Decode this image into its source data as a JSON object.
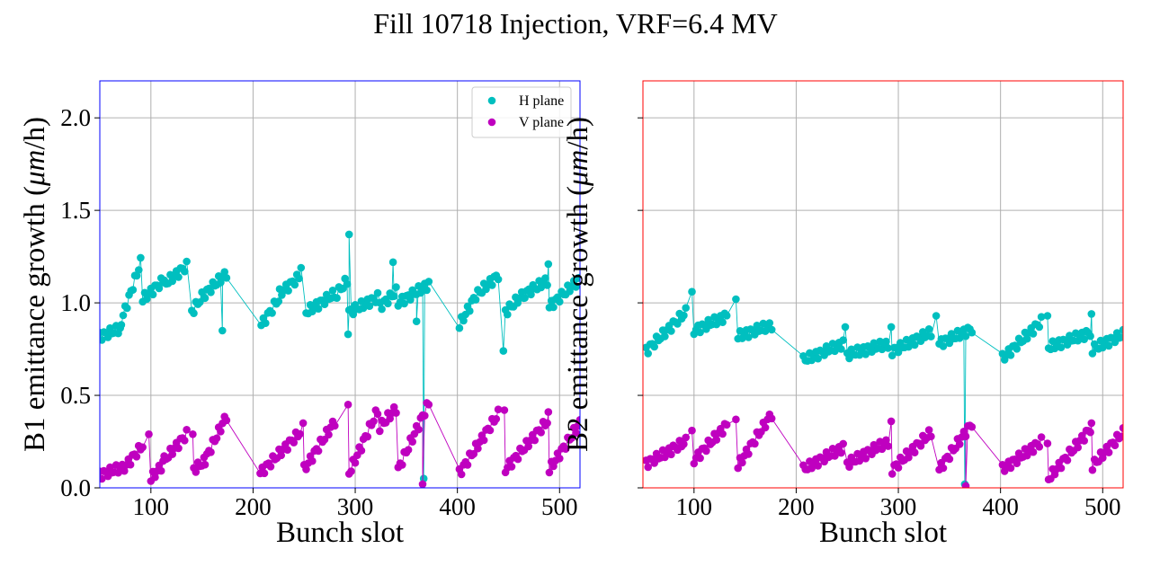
{
  "figure": {
    "title": "Fill 10718 Injection, VRF=6.4 MV"
  },
  "colors": {
    "h_plane": "#00bfbf",
    "v_plane": "#bf00bf",
    "b1_frame": "#0000ff",
    "b2_frame": "#ff0000",
    "grid": "#b0b0b0"
  },
  "chart_data": [
    {
      "type": "scatter",
      "title": "",
      "xlabel": "Bunch slot",
      "ylabel_prefix": "B1 emittance growth (",
      "ylabel_unit": "μm",
      "ylabel_suffix": "/h)",
      "xlim": [
        50,
        520
      ],
      "ylim": [
        0.0,
        2.2
      ],
      "xticks": [
        100,
        200,
        300,
        400,
        500
      ],
      "yticks": [
        0.0,
        0.5,
        1.0,
        1.5,
        2.0
      ],
      "ytick_labels": [
        "0.0",
        "0.5",
        "1.0",
        "1.5",
        "2.0"
      ],
      "grid": true,
      "legend": {
        "position": "top-right",
        "entries": [
          "H plane",
          "V plane"
        ]
      },
      "series": [
        {
          "name": "H plane",
          "groups": [
            {
              "x_start": 50,
              "x_end": 70,
              "y_start": 0.82,
              "y_end": 0.86,
              "n": 11
            },
            {
              "x_start": 71,
              "x_end": 90,
              "y_start": 0.9,
              "y_end": 1.22,
              "n": 11
            },
            {
              "x_start": 92,
              "x_end": 112,
              "y_start": 1.02,
              "y_end": 1.12,
              "n": 11
            },
            {
              "x_start": 113,
              "x_end": 135,
              "y_start": 1.1,
              "y_end": 1.2,
              "n": 12
            },
            {
              "x_start": 140,
              "x_end": 152,
              "y_start": 0.95,
              "y_end": 1.05,
              "n": 7
            },
            {
              "x_start": 153,
              "x_end": 174,
              "y_start": 1.05,
              "y_end": 1.16,
              "n": 12
            },
            {
              "x_start": 208,
              "x_end": 225,
              "y_start": 0.88,
              "y_end": 1.02,
              "n": 9
            },
            {
              "x_start": 226,
              "x_end": 245,
              "y_start": 1.05,
              "y_end": 1.14,
              "n": 10
            },
            {
              "x_start": 252,
              "x_end": 280,
              "y_start": 0.95,
              "y_end": 1.05,
              "n": 15
            },
            {
              "x_start": 282,
              "x_end": 292,
              "y_start": 1.05,
              "y_end": 1.12,
              "n": 6
            },
            {
              "x_start": 294,
              "x_end": 322,
              "y_start": 0.95,
              "y_end": 1.03,
              "n": 15
            },
            {
              "x_start": 324,
              "x_end": 340,
              "y_start": 0.98,
              "y_end": 1.06,
              "n": 9
            },
            {
              "x_start": 342,
              "x_end": 372,
              "y_start": 1.0,
              "y_end": 1.1,
              "n": 16
            },
            {
              "x_start": 402,
              "x_end": 418,
              "y_start": 0.88,
              "y_end": 1.04,
              "n": 9
            },
            {
              "x_start": 420,
              "x_end": 440,
              "y_start": 1.05,
              "y_end": 1.15,
              "n": 11
            },
            {
              "x_start": 447,
              "x_end": 465,
              "y_start": 0.95,
              "y_end": 1.05,
              "n": 10
            },
            {
              "x_start": 466,
              "x_end": 488,
              "y_start": 1.05,
              "y_end": 1.12,
              "n": 12
            },
            {
              "x_start": 490,
              "x_end": 520,
              "y_start": 0.98,
              "y_end": 1.13,
              "n": 16
            }
          ],
          "outliers": [
            {
              "x": 294,
              "y": 1.37
            },
            {
              "x": 337,
              "y": 1.22
            },
            {
              "x": 247,
              "y": 1.19
            },
            {
              "x": 489,
              "y": 1.21
            },
            {
              "x": 293,
              "y": 0.83
            },
            {
              "x": 367,
              "y": 0.05
            },
            {
              "x": 445,
              "y": 0.74
            },
            {
              "x": 170,
              "y": 0.85
            },
            {
              "x": 360,
              "y": 0.9
            }
          ]
        },
        {
          "name": "V plane",
          "groups": [
            {
              "x_start": 50,
              "x_end": 72,
              "y_start": 0.07,
              "y_end": 0.11,
              "n": 12
            },
            {
              "x_start": 74,
              "x_end": 92,
              "y_start": 0.11,
              "y_end": 0.23,
              "n": 10
            },
            {
              "x_start": 100,
              "x_end": 112,
              "y_start": 0.05,
              "y_end": 0.13,
              "n": 7
            },
            {
              "x_start": 113,
              "x_end": 135,
              "y_start": 0.15,
              "y_end": 0.29,
              "n": 12
            },
            {
              "x_start": 142,
              "x_end": 152,
              "y_start": 0.1,
              "y_end": 0.14,
              "n": 6
            },
            {
              "x_start": 153,
              "x_end": 174,
              "y_start": 0.15,
              "y_end": 0.39,
              "n": 12
            },
            {
              "x_start": 207,
              "x_end": 246,
              "y_start": 0.08,
              "y_end": 0.3,
              "n": 20
            },
            {
              "x_start": 250,
              "x_end": 280,
              "y_start": 0.1,
              "y_end": 0.36,
              "n": 16
            },
            {
              "x_start": 294,
              "x_end": 322,
              "y_start": 0.08,
              "y_end": 0.42,
              "n": 15
            },
            {
              "x_start": 324,
              "x_end": 340,
              "y_start": 0.33,
              "y_end": 0.43,
              "n": 9
            },
            {
              "x_start": 342,
              "x_end": 372,
              "y_start": 0.1,
              "y_end": 0.46,
              "n": 16
            },
            {
              "x_start": 402,
              "x_end": 440,
              "y_start": 0.08,
              "y_end": 0.4,
              "n": 20
            },
            {
              "x_start": 447,
              "x_end": 488,
              "y_start": 0.1,
              "y_end": 0.36,
              "n": 21
            },
            {
              "x_start": 490,
              "x_end": 520,
              "y_start": 0.1,
              "y_end": 0.35,
              "n": 16
            }
          ],
          "outliers": [
            {
              "x": 98,
              "y": 0.29
            },
            {
              "x": 141,
              "y": 0.29
            },
            {
              "x": 249,
              "y": 0.35
            },
            {
              "x": 293,
              "y": 0.45
            },
            {
              "x": 366,
              "y": 0.02
            },
            {
              "x": 446,
              "y": 0.42
            },
            {
              "x": 489,
              "y": 0.41
            }
          ]
        }
      ]
    },
    {
      "type": "scatter",
      "title": "",
      "xlabel": "Bunch slot",
      "ylabel_prefix": "B2 emittance growth (",
      "ylabel_unit": "μm",
      "ylabel_suffix": "/h)",
      "xlim": [
        50,
        520
      ],
      "ylim": [
        0.0,
        2.2
      ],
      "xticks": [
        100,
        200,
        300,
        400,
        500
      ],
      "yticks": [
        0.0,
        0.5,
        1.0,
        1.5,
        2.0
      ],
      "ytick_labels": [
        "",
        "",
        "",
        "",
        ""
      ],
      "grid": true,
      "legend": null,
      "series": [
        {
          "name": "H plane",
          "groups": [
            {
              "x_start": 53,
              "x_end": 92,
              "y_start": 0.74,
              "y_end": 0.95,
              "n": 20
            },
            {
              "x_start": 100,
              "x_end": 132,
              "y_start": 0.85,
              "y_end": 0.93,
              "n": 17
            },
            {
              "x_start": 143,
              "x_end": 176,
              "y_start": 0.82,
              "y_end": 0.88,
              "n": 17
            },
            {
              "x_start": 207,
              "x_end": 246,
              "y_start": 0.69,
              "y_end": 0.78,
              "n": 20
            },
            {
              "x_start": 250,
              "x_end": 290,
              "y_start": 0.72,
              "y_end": 0.78,
              "n": 21
            },
            {
              "x_start": 294,
              "x_end": 332,
              "y_start": 0.74,
              "y_end": 0.84,
              "n": 20
            },
            {
              "x_start": 340,
              "x_end": 372,
              "y_start": 0.78,
              "y_end": 0.86,
              "n": 17
            },
            {
              "x_start": 402,
              "x_end": 440,
              "y_start": 0.7,
              "y_end": 0.9,
              "n": 20
            },
            {
              "x_start": 447,
              "x_end": 488,
              "y_start": 0.76,
              "y_end": 0.84,
              "n": 21
            },
            {
              "x_start": 490,
              "x_end": 520,
              "y_start": 0.75,
              "y_end": 0.83,
              "n": 16
            }
          ],
          "outliers": [
            {
              "x": 98,
              "y": 1.06
            },
            {
              "x": 141,
              "y": 1.02
            },
            {
              "x": 248,
              "y": 0.87
            },
            {
              "x": 293,
              "y": 0.87
            },
            {
              "x": 337,
              "y": 0.93
            },
            {
              "x": 446,
              "y": 0.93
            },
            {
              "x": 489,
              "y": 0.94
            },
            {
              "x": 365,
              "y": 0.02
            }
          ]
        },
        {
          "name": "V plane",
          "groups": [
            {
              "x_start": 53,
              "x_end": 92,
              "y_start": 0.13,
              "y_end": 0.25,
              "n": 20
            },
            {
              "x_start": 100,
              "x_end": 132,
              "y_start": 0.15,
              "y_end": 0.34,
              "n": 17
            },
            {
              "x_start": 143,
              "x_end": 176,
              "y_start": 0.12,
              "y_end": 0.4,
              "n": 17
            },
            {
              "x_start": 207,
              "x_end": 246,
              "y_start": 0.1,
              "y_end": 0.22,
              "n": 20
            },
            {
              "x_start": 250,
              "x_end": 290,
              "y_start": 0.13,
              "y_end": 0.25,
              "n": 21
            },
            {
              "x_start": 294,
              "x_end": 332,
              "y_start": 0.1,
              "y_end": 0.3,
              "n": 20
            },
            {
              "x_start": 340,
              "x_end": 372,
              "y_start": 0.1,
              "y_end": 0.35,
              "n": 17
            },
            {
              "x_start": 402,
              "x_end": 440,
              "y_start": 0.1,
              "y_end": 0.25,
              "n": 20
            },
            {
              "x_start": 447,
              "x_end": 488,
              "y_start": 0.05,
              "y_end": 0.32,
              "n": 21
            },
            {
              "x_start": 490,
              "x_end": 520,
              "y_start": 0.12,
              "y_end": 0.3,
              "n": 16
            }
          ],
          "outliers": [
            {
              "x": 98,
              "y": 0.31
            },
            {
              "x": 141,
              "y": 0.37
            },
            {
              "x": 293,
              "y": 0.36
            },
            {
              "x": 446,
              "y": 0.24
            },
            {
              "x": 489,
              "y": 0.35
            },
            {
              "x": 366,
              "y": 0.01
            }
          ]
        }
      ]
    }
  ]
}
